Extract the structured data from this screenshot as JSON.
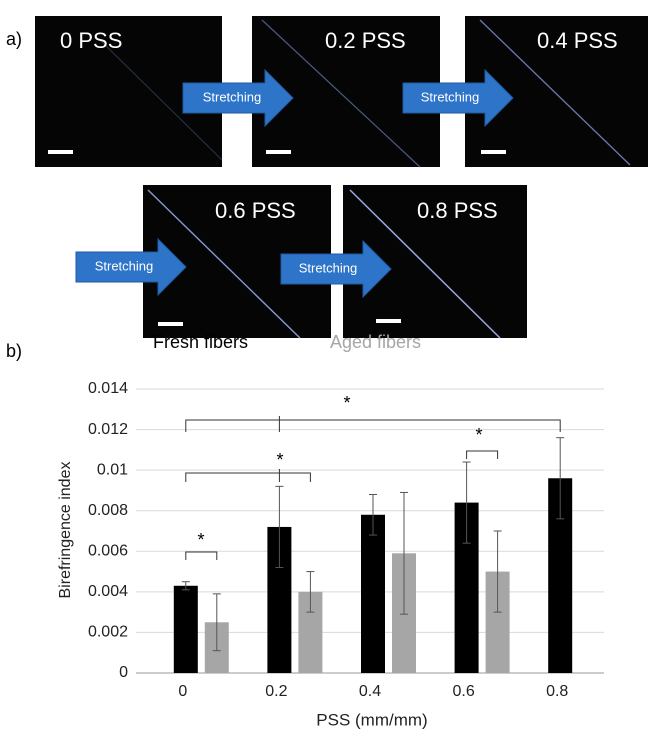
{
  "panel_a": {
    "label": "a)",
    "images": [
      "0 PSS",
      "0.2 PSS",
      "0.4 PSS",
      "0.6 PSS",
      "0.8 PSS"
    ],
    "arrows": [
      "Stretching",
      "Stretching",
      "Stretching",
      "Stretching"
    ]
  },
  "chart_data": {
    "type": "bar",
    "panel_label": "b)",
    "y_label": "Birefringence index",
    "x_label": "PSS (mm/mm)",
    "categories": [
      "0",
      "0.2",
      "0.4",
      "0.6",
      "0.8"
    ],
    "series": [
      {
        "name": "Fresh fibers",
        "color": "#000000",
        "values": [
          0.0043,
          0.0072,
          0.0078,
          0.0084,
          0.0096
        ],
        "errors": [
          0.0002,
          0.002,
          0.001,
          0.002,
          0.002
        ]
      },
      {
        "name": "Aged fibers",
        "color": "#a6a6a6",
        "values": [
          0.0025,
          0.004,
          0.0059,
          0.005,
          null
        ],
        "errors": [
          0.0014,
          0.001,
          0.003,
          0.002,
          null
        ]
      }
    ],
    "ylim": [
      0,
      0.014
    ],
    "yticks": [
      0,
      0.002,
      0.004,
      0.006,
      0.008,
      0.01,
      0.012,
      0.014
    ],
    "grid": true,
    "annotations": [
      "*",
      "*",
      "*",
      "*"
    ]
  }
}
